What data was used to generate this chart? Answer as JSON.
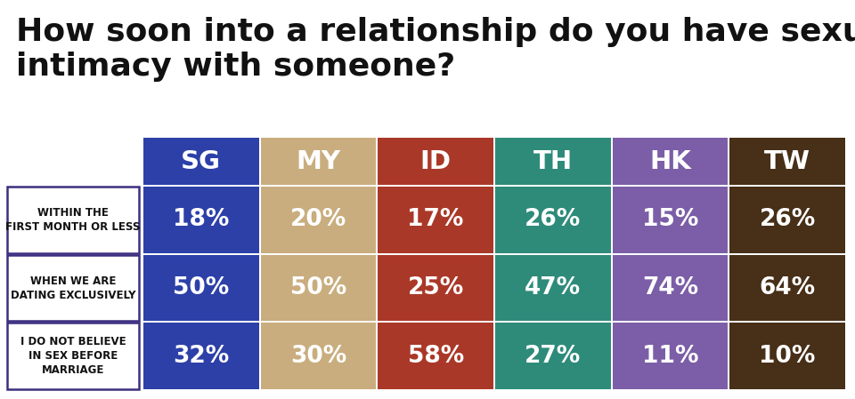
{
  "title": "How soon into a relationship do you have sexual\nintimacy with someone?",
  "columns": [
    "SG",
    "MY",
    "ID",
    "TH",
    "HK",
    "TW"
  ],
  "col_colors": [
    "#2d40a8",
    "#c9ad7e",
    "#aa3828",
    "#2e8b7a",
    "#7b5ea7",
    "#472f18"
  ],
  "rows": [
    "WITHIN THE\nFIRST MONTH OR LESS",
    "WHEN WE ARE\nDATING EXCLUSIVELY",
    "I DO NOT BELIEVE\nIN SEX BEFORE\nMARRIAGE"
  ],
  "values": [
    [
      "18%",
      "20%",
      "17%",
      "26%",
      "15%",
      "26%"
    ],
    [
      "50%",
      "50%",
      "25%",
      "47%",
      "74%",
      "64%"
    ],
    [
      "32%",
      "30%",
      "58%",
      "27%",
      "11%",
      "10%"
    ]
  ],
  "background_color": "#ffffff",
  "title_fontsize": 26,
  "cell_text_fontsize": 19,
  "header_fontsize": 21,
  "row_label_fontsize": 8.5,
  "row_border_color": "#3d2e80",
  "title_color": "#111111"
}
